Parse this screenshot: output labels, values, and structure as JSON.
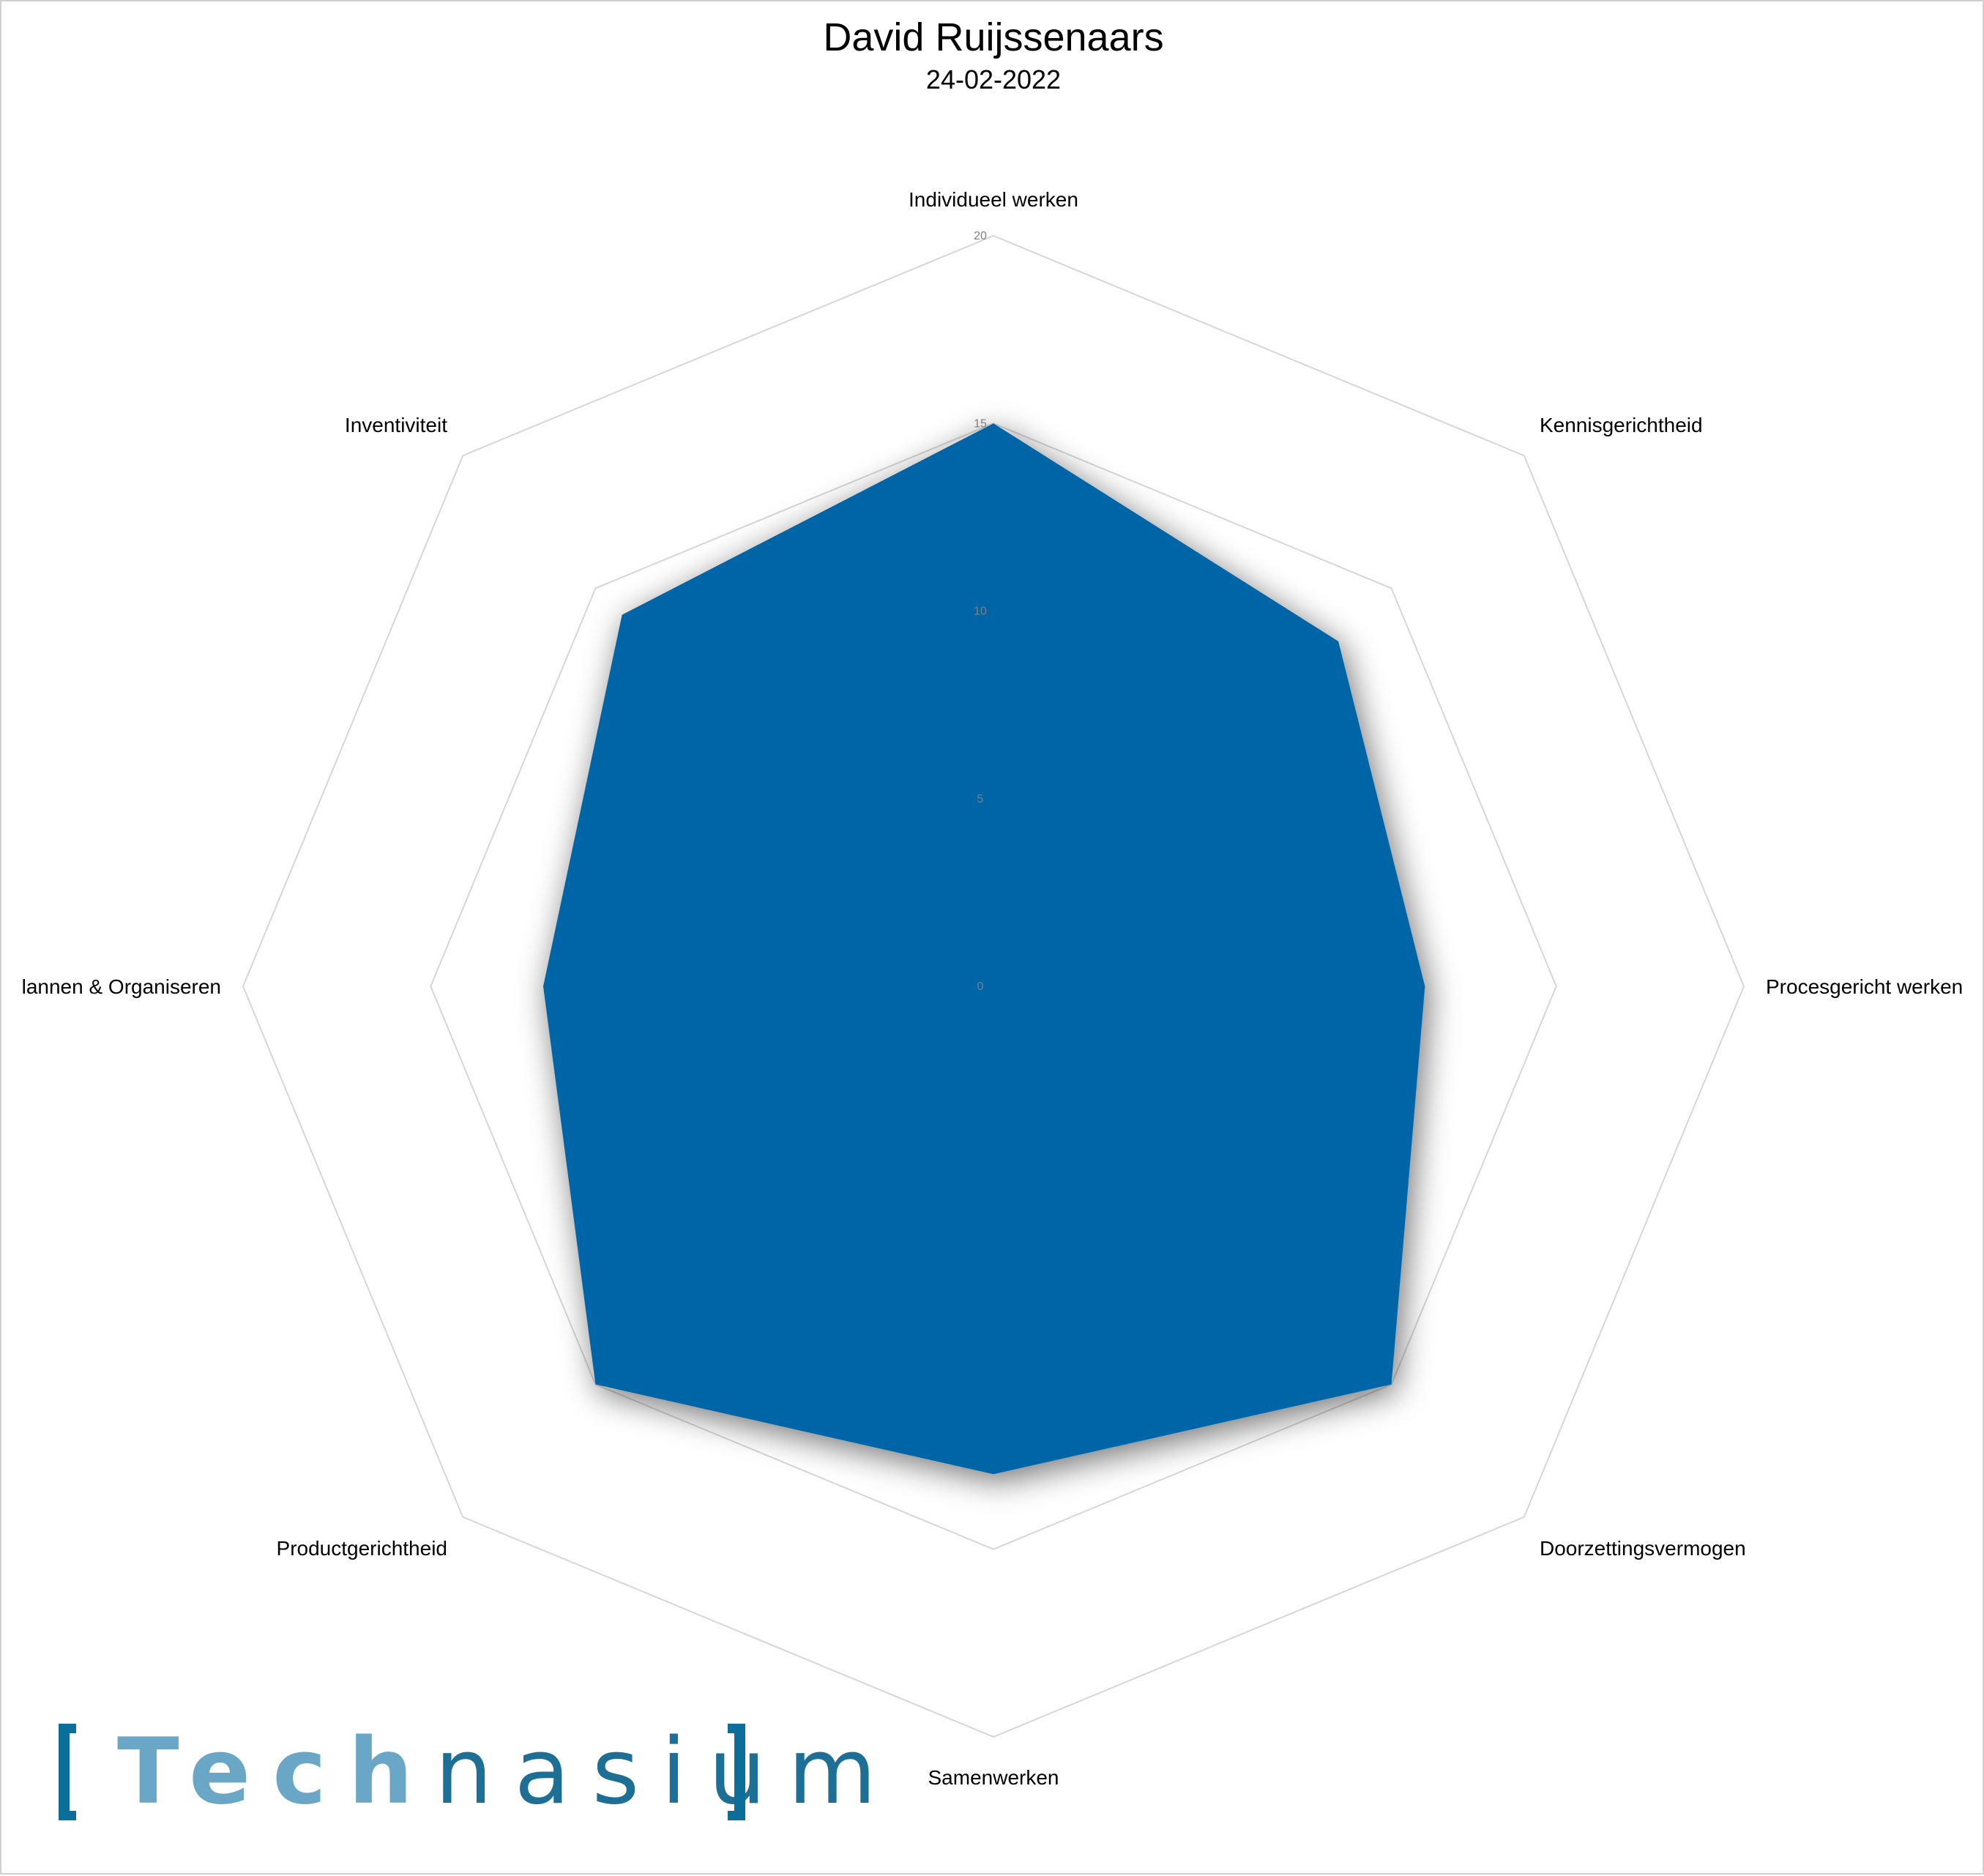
{
  "title": "David Ruijssenaars",
  "subtitle": "24-02-2022",
  "logo": {
    "part1": "Tech",
    "part2": "nasium"
  },
  "colors": {
    "series_fill": "#0065a6",
    "grid": "#d6d6d6",
    "logo_light": "#6aa7c7",
    "logo_dark": "#0b6f99"
  },
  "chart_data": {
    "type": "radar",
    "title": "David Ruijssenaars",
    "subtitle": "24-02-2022",
    "categories": [
      "Individueel werken",
      "Kennisgerichtheid",
      "Procesgericht werken",
      "Doorzettingsvermogen",
      "Samenwerken",
      "Productgerichtheid",
      "lannen & Organiseren",
      "Inventiviteit"
    ],
    "series": [
      {
        "values": [
          15,
          13,
          11.5,
          15,
          13,
          15,
          12,
          14
        ]
      }
    ],
    "r_ticks": [
      0,
      5,
      10,
      15,
      20
    ],
    "rlim": [
      0,
      20
    ],
    "grid": true,
    "legend": "none"
  }
}
